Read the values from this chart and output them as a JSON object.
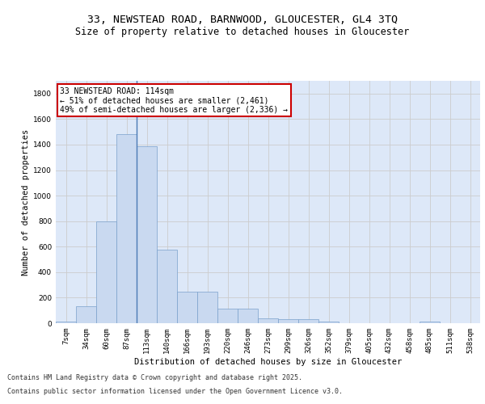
{
  "title_line1": "33, NEWSTEAD ROAD, BARNWOOD, GLOUCESTER, GL4 3TQ",
  "title_line2": "Size of property relative to detached houses in Gloucester",
  "xlabel": "Distribution of detached houses by size in Gloucester",
  "ylabel": "Number of detached properties",
  "categories": [
    "7sqm",
    "34sqm",
    "60sqm",
    "87sqm",
    "113sqm",
    "140sqm",
    "166sqm",
    "193sqm",
    "220sqm",
    "246sqm",
    "273sqm",
    "299sqm",
    "326sqm",
    "352sqm",
    "379sqm",
    "405sqm",
    "432sqm",
    "458sqm",
    "485sqm",
    "511sqm",
    "538sqm"
  ],
  "values": [
    10,
    130,
    800,
    1480,
    1390,
    575,
    250,
    250,
    115,
    115,
    35,
    30,
    30,
    15,
    0,
    0,
    0,
    0,
    10,
    0,
    0
  ],
  "bar_color": "#c9d9f0",
  "bar_edge_color": "#7aa0cc",
  "vline_x_index": 4,
  "vline_color": "#4a7ab5",
  "annotation_text": "33 NEWSTEAD ROAD: 114sqm\n← 51% of detached houses are smaller (2,461)\n49% of semi-detached houses are larger (2,336) →",
  "annotation_box_color": "#ffffff",
  "annotation_border_color": "#cc0000",
  "ylim": [
    0,
    1900
  ],
  "yticks": [
    0,
    200,
    400,
    600,
    800,
    1000,
    1200,
    1400,
    1600,
    1800
  ],
  "grid_color": "#cccccc",
  "bg_color": "#dde8f8",
  "footer_line1": "Contains HM Land Registry data © Crown copyright and database right 2025.",
  "footer_line2": "Contains public sector information licensed under the Open Government Licence v3.0.",
  "title_fontsize": 9.5,
  "subtitle_fontsize": 8.5,
  "tick_fontsize": 6.5,
  "ylabel_fontsize": 7.5,
  "xlabel_fontsize": 7.5,
  "annotation_fontsize": 7.0,
  "footer_fontsize": 6.0
}
